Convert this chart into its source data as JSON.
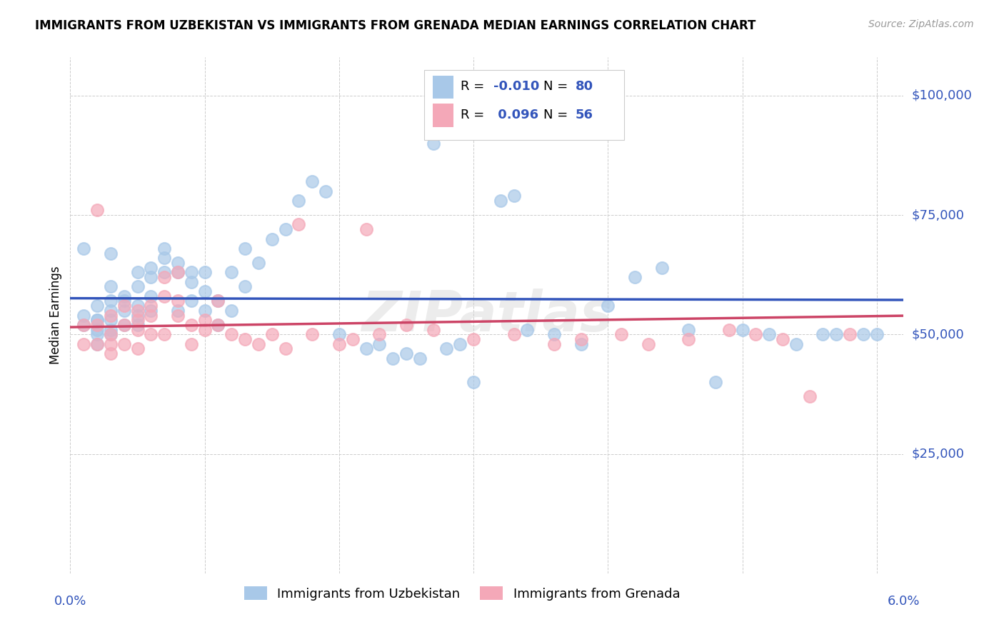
{
  "title": "IMMIGRANTS FROM UZBEKISTAN VS IMMIGRANTS FROM GRENADA MEDIAN EARNINGS CORRELATION CHART",
  "source": "Source: ZipAtlas.com",
  "ylabel": "Median Earnings",
  "yticks": [
    25000,
    50000,
    75000,
    100000
  ],
  "ytick_labels": [
    "$25,000",
    "$50,000",
    "$75,000",
    "$100,000"
  ],
  "xmin": 0.0,
  "xmax": 0.062,
  "ymin": 0,
  "ymax": 108000,
  "r1": -0.01,
  "r2": 0.096,
  "color_uzbekistan": "#a8c8e8",
  "color_grenada": "#f4a8b8",
  "line_color_uzbekistan": "#3355bb",
  "line_color_grenada": "#cc4466",
  "uzbekistan_x": [
    0.001,
    0.001,
    0.001,
    0.002,
    0.002,
    0.002,
    0.002,
    0.002,
    0.002,
    0.003,
    0.003,
    0.003,
    0.003,
    0.003,
    0.003,
    0.003,
    0.004,
    0.004,
    0.004,
    0.004,
    0.005,
    0.005,
    0.005,
    0.005,
    0.005,
    0.006,
    0.006,
    0.006,
    0.006,
    0.007,
    0.007,
    0.007,
    0.008,
    0.008,
    0.008,
    0.009,
    0.009,
    0.009,
    0.01,
    0.01,
    0.01,
    0.011,
    0.011,
    0.012,
    0.012,
    0.013,
    0.013,
    0.014,
    0.015,
    0.016,
    0.017,
    0.018,
    0.019,
    0.02,
    0.022,
    0.023,
    0.024,
    0.025,
    0.026,
    0.027,
    0.028,
    0.029,
    0.03,
    0.032,
    0.033,
    0.034,
    0.036,
    0.038,
    0.04,
    0.042,
    0.044,
    0.046,
    0.048,
    0.05,
    0.052,
    0.054,
    0.056,
    0.057,
    0.059,
    0.06
  ],
  "uzbekistan_y": [
    52000,
    54000,
    68000,
    56000,
    50000,
    53000,
    48000,
    53000,
    51000,
    55000,
    50000,
    57000,
    60000,
    53000,
    51000,
    67000,
    52000,
    55000,
    58000,
    57000,
    60000,
    63000,
    54000,
    52000,
    56000,
    62000,
    64000,
    55000,
    58000,
    66000,
    68000,
    63000,
    63000,
    55000,
    65000,
    61000,
    57000,
    63000,
    63000,
    59000,
    55000,
    52000,
    57000,
    63000,
    55000,
    60000,
    68000,
    65000,
    70000,
    72000,
    78000,
    82000,
    80000,
    50000,
    47000,
    48000,
    45000,
    46000,
    45000,
    90000,
    47000,
    48000,
    40000,
    78000,
    79000,
    51000,
    50000,
    48000,
    56000,
    62000,
    64000,
    51000,
    40000,
    51000,
    50000,
    48000,
    50000,
    50000,
    50000,
    50000
  ],
  "grenada_x": [
    0.001,
    0.001,
    0.002,
    0.002,
    0.002,
    0.003,
    0.003,
    0.003,
    0.003,
    0.004,
    0.004,
    0.004,
    0.005,
    0.005,
    0.005,
    0.005,
    0.006,
    0.006,
    0.006,
    0.007,
    0.007,
    0.007,
    0.008,
    0.008,
    0.008,
    0.009,
    0.009,
    0.01,
    0.01,
    0.011,
    0.011,
    0.012,
    0.013,
    0.014,
    0.015,
    0.016,
    0.017,
    0.018,
    0.02,
    0.021,
    0.022,
    0.023,
    0.025,
    0.027,
    0.03,
    0.033,
    0.036,
    0.038,
    0.041,
    0.043,
    0.046,
    0.049,
    0.051,
    0.053,
    0.055,
    0.058
  ],
  "grenada_y": [
    52000,
    48000,
    76000,
    52000,
    48000,
    54000,
    50000,
    48000,
    46000,
    56000,
    52000,
    48000,
    55000,
    53000,
    51000,
    47000,
    56000,
    54000,
    50000,
    58000,
    62000,
    50000,
    63000,
    57000,
    54000,
    52000,
    48000,
    53000,
    51000,
    57000,
    52000,
    50000,
    49000,
    48000,
    50000,
    47000,
    73000,
    50000,
    48000,
    49000,
    72000,
    50000,
    52000,
    51000,
    49000,
    50000,
    48000,
    49000,
    50000,
    48000,
    49000,
    51000,
    50000,
    49000,
    37000,
    50000
  ]
}
